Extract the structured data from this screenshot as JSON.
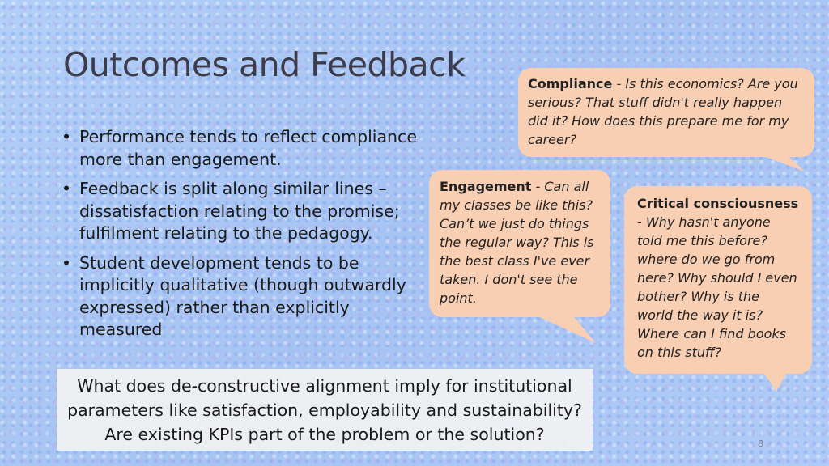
{
  "slide": {
    "title": "Outcomes and Feedback",
    "bullets": [
      "Performance tends to reflect compliance more than engagement.",
      "Feedback is split along similar lines – dissatisfaction relating to the promise; fulfilment relating to the pedagogy.",
      "Student development tends to be implicitly qualitative (though outwardly expressed) rather than explicitly measured"
    ],
    "bullet_marker": "•",
    "bubbles": {
      "compliance": {
        "heading": "Compliance",
        "text": " - Is this economics? Are you serious? That stuff didn't really happen did it? How does this prepare me for my career?"
      },
      "engagement": {
        "heading": "Engagement",
        "text": " - Can all my classes be like this? Can’t we just do things the regular way? This is the best class I've ever taken. I don't see the point."
      },
      "critical": {
        "heading": "Critical consciousness",
        "text": "- Why hasn't anyone told me this before? where do we go from here? Why should I even bother? Why is the world the way it is? Where can I find books on this stuff?"
      }
    },
    "question": "What does de-constructive alignment imply for institutional parameters like satisfaction, employability and sustainability? Are existing KPIs part of the problem or the solution?",
    "page_number": "8",
    "colors": {
      "background": "#a9c8f4",
      "bubble_fill": "#f9cfb4",
      "question_fill": "#f2f2f2",
      "title_color": "#3c3c4a"
    }
  }
}
